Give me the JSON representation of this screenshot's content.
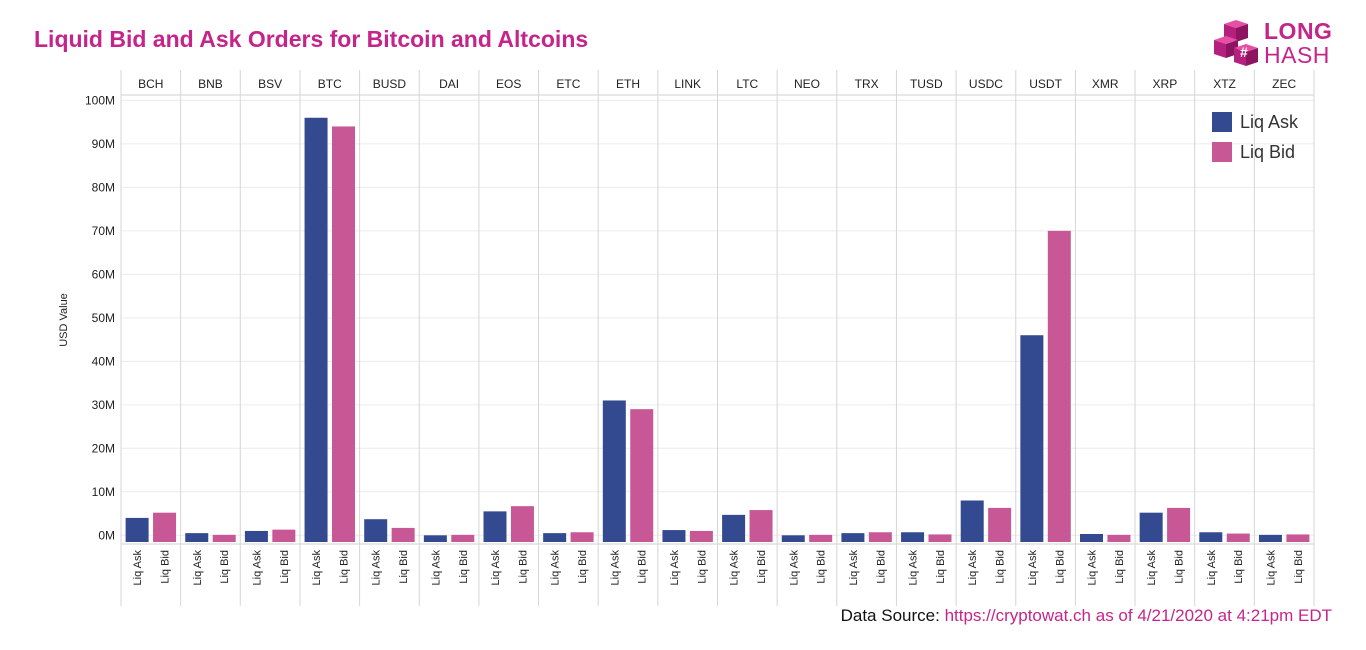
{
  "title": "Liquid Bid and Ask Orders for Bitcoin and Altcoins",
  "logo": {
    "line1": "LONG",
    "line2": "HASH",
    "color": "#c5258b"
  },
  "source": {
    "label": "Data Source:",
    "link": "https://cryptowat.ch as of 4/21/2020 at 4:21pm EDT"
  },
  "chart_data": {
    "type": "bar",
    "ylabel": "USD Value",
    "ylim": [
      -2000000,
      101000000
    ],
    "yticks": [
      {
        "value": 0,
        "label": "0M"
      },
      {
        "value": 10000000,
        "label": "10M"
      },
      {
        "value": 20000000,
        "label": "20M"
      },
      {
        "value": 30000000,
        "label": "30M"
      },
      {
        "value": 40000000,
        "label": "40M"
      },
      {
        "value": 50000000,
        "label": "50M"
      },
      {
        "value": 60000000,
        "label": "60M"
      },
      {
        "value": 70000000,
        "label": "70M"
      },
      {
        "value": 80000000,
        "label": "80M"
      },
      {
        "value": 90000000,
        "label": "90M"
      },
      {
        "value": 100000000,
        "label": "100M"
      }
    ],
    "grid": true,
    "legend_position": "top-right",
    "categories": [
      "BCH",
      "BNB",
      "BSV",
      "BTC",
      "BUSD",
      "DAI",
      "EOS",
      "ETC",
      "ETH",
      "LINK",
      "LTC",
      "NEO",
      "TRX",
      "TUSD",
      "USDC",
      "USDT",
      "XMR",
      "XRP",
      "XTZ",
      "ZEC"
    ],
    "sub_categories": [
      "Liq Ask",
      "Liq Bid"
    ],
    "series": [
      {
        "name": "Liq Ask",
        "color": "#344a90",
        "values": [
          4000000,
          500000,
          1000000,
          96000000,
          3700000,
          -700000,
          5500000,
          500000,
          31000000,
          1200000,
          4700000,
          -400000,
          500000,
          700000,
          8000000,
          46000000,
          300000,
          5200000,
          700000,
          100000
        ]
      },
      {
        "name": "Liq Bid",
        "color": "#c75895",
        "values": [
          5200000,
          100000,
          1300000,
          94000000,
          1700000,
          100000,
          6700000,
          700000,
          29000000,
          1000000,
          5800000,
          100000,
          700000,
          200000,
          6300000,
          70000000,
          100000,
          6300000,
          400000,
          200000
        ]
      }
    ]
  }
}
